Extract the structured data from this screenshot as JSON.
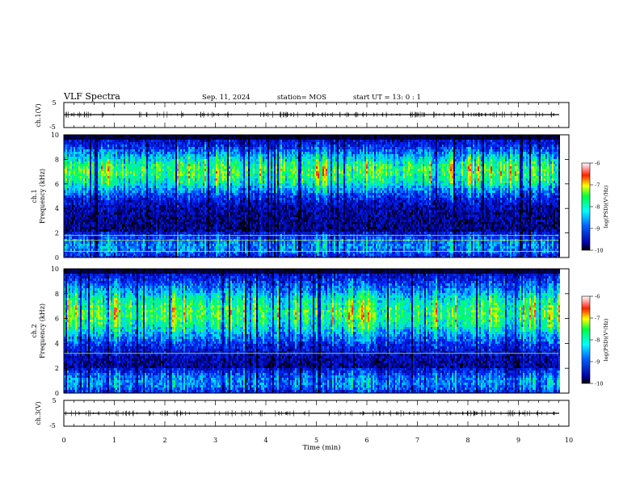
{
  "header": {
    "title": "VLF Spectra",
    "date": "Sep. 11, 2024",
    "station": "station= MOS",
    "start_ut": "start  UT  =  13: 0  : 1"
  },
  "axes": {
    "time_label": "Time  (min)",
    "ch1_label": "ch.1(V)",
    "ch3_label": "ch.3(V)",
    "spec1_label_a": "ch.1",
    "spec2_label_a": "ch.2",
    "freq_label": "Frequency (kHz)"
  },
  "colorbar": {
    "label": "log(PSD)(V²/Hz)",
    "ticks": [
      "-6",
      "-7",
      "-8",
      "-9",
      "-10"
    ]
  },
  "chart_data": [
    {
      "type": "line",
      "panel": "ch1-waveform",
      "ylabel": "ch.1(V)",
      "ylim": [
        -5,
        5
      ],
      "yticks": [
        5,
        -5
      ],
      "xlim": [
        0,
        10
      ],
      "series": [
        {
          "values_description_level": 0
        }
      ]
    },
    {
      "type": "heatmap",
      "panel": "ch1-spectrogram",
      "ylabel": "Frequency (kHz)",
      "ylim": [
        0,
        10
      ],
      "yticks": [
        0,
        2,
        4,
        6,
        8,
        10
      ],
      "xlim": [
        0,
        10
      ],
      "data_end_min": 9.8,
      "emission_band_khz": [
        5,
        9
      ],
      "horizontal_lines_khz": [
        0.5,
        1.4,
        1.8
      ],
      "color_scale": {
        "min": -10,
        "max": -6
      }
    },
    {
      "type": "heatmap",
      "panel": "ch2-spectrogram",
      "ylabel": "Frequency (kHz)",
      "ylim": [
        0,
        10
      ],
      "yticks": [
        0,
        2,
        4,
        6,
        8,
        10
      ],
      "xlim": [
        0,
        10
      ],
      "data_end_min": 9.8,
      "emission_band_khz": [
        4,
        9
      ],
      "horizontal_lines_khz": [
        3.2
      ],
      "color_scale": {
        "min": -10,
        "max": -6
      }
    },
    {
      "type": "line",
      "panel": "ch3-waveform",
      "ylabel": "ch.3(V)",
      "ylim": [
        -5,
        5
      ],
      "yticks": [
        5,
        -5
      ],
      "xlim": [
        0,
        10
      ]
    }
  ],
  "xaxis": {
    "xlim": [
      0,
      10
    ],
    "ticks": [
      "0",
      "1",
      "2",
      "3",
      "4",
      "5",
      "6",
      "7",
      "8",
      "9",
      "10"
    ]
  },
  "colors": {
    "jet_stops": [
      "#00008f",
      "#0000ff",
      "#00ffff",
      "#7fff00",
      "#ffff00",
      "#ff0000",
      "#ffffff"
    ]
  }
}
